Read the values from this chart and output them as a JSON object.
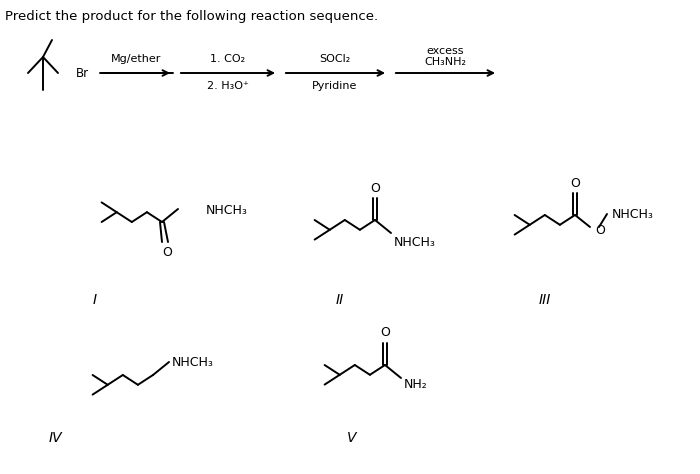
{
  "title": "Predict the product for the following reaction sequence.",
  "title_fontsize": 9.5,
  "bg_color": "#ffffff",
  "line_color": "#000000",
  "line_width": 1.4,
  "fig_width": 7.0,
  "fig_height": 4.74,
  "arrow_label_1": "Mg/ether",
  "arrow_label_2a": "1. CO₂",
  "arrow_label_2b": "2. H₃O⁺",
  "arrow_label_3a": "SOCl₂",
  "arrow_label_3b": "Pyridine",
  "arrow_label_4a": "excess",
  "arrow_label_4b": "CH₃NH₂",
  "label_I": "I",
  "label_II": "II",
  "label_III": "III",
  "label_IV": "IV",
  "label_V": "V"
}
